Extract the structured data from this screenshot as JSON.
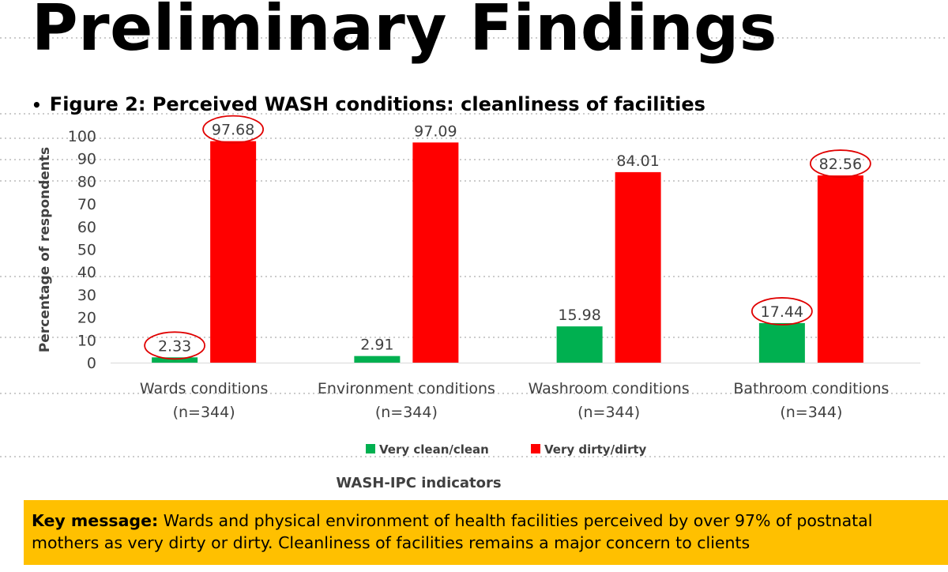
{
  "slide": {
    "title": "Preliminary Findings",
    "bullet_text": "Figure 2: Perceived WASH conditions: cleanliness of facilities"
  },
  "colors": {
    "series_clean": "#00b050",
    "series_dirty": "#ff0000",
    "highlight_ring": "#e00000",
    "key_box": "#ffc000"
  },
  "chart_data": {
    "type": "bar",
    "title": "Figure 2: Perceived WASH conditions: cleanliness of facilities",
    "categories": [
      [
        "Wards conditions",
        "(n=344)"
      ],
      [
        "Environment conditions",
        "(n=344)"
      ],
      [
        "Washroom conditions",
        "(n=344)"
      ],
      [
        "Bathroom conditions",
        "(n=344)"
      ]
    ],
    "series": [
      {
        "name": "Very clean/clean",
        "values": [
          2.33,
          2.91,
          15.98,
          17.44
        ],
        "labels": [
          "2.33",
          "2.91",
          "15.98",
          "17.44"
        ]
      },
      {
        "name": "Very dirty/dirty",
        "values": [
          97.68,
          97.09,
          84.01,
          82.56
        ],
        "labels": [
          "97.68",
          "97.09",
          "84.01",
          "82.56"
        ]
      }
    ],
    "highlighted_labels": [
      {
        "series": 0,
        "category": 0
      },
      {
        "series": 1,
        "category": 0
      },
      {
        "series": 0,
        "category": 3
      },
      {
        "series": 1,
        "category": 3
      }
    ],
    "ylim": [
      0,
      100
    ],
    "yticks": [
      0,
      10,
      20,
      30,
      40,
      50,
      60,
      70,
      80,
      90,
      100
    ],
    "ytick_labels": [
      "0",
      "10",
      "20",
      "30",
      "40",
      "50",
      "60",
      "70",
      "80",
      "90",
      "100"
    ],
    "ylabel": "Percentage of respondents",
    "xlabel": "WASH-IPC indicators",
    "grid": false,
    "legend_position": "bottom"
  },
  "key_message": {
    "label": "Key message:",
    "text": " Wards and physical environment of health facilities perceived by over 97% of postnatal mothers as very dirty or dirty. Cleanliness of facilities remains a major concern to clients"
  }
}
